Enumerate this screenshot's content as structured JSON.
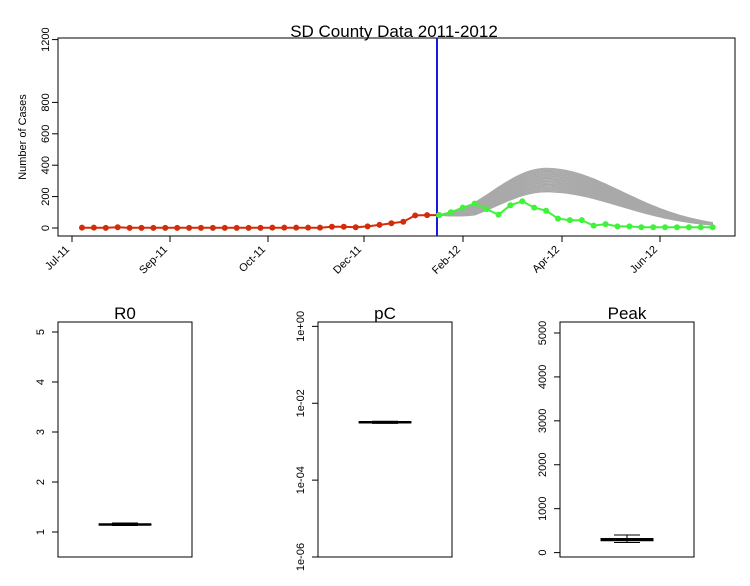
{
  "chart_data": [
    {
      "type": "line",
      "title": "SD County Data 2011-2012",
      "xlabel": "",
      "ylabel": "Number of Cases",
      "x_tick_labels": [
        "Jul-11",
        "Sep-11",
        "Oct-11",
        "Dec-11",
        "Feb-12",
        "Apr-12",
        "Jun-12"
      ],
      "y_ticks": [
        0,
        200,
        400,
        600,
        800,
        1200
      ],
      "ylim": [
        0,
        1250
      ],
      "observed_fit_weeks": [
        1,
        2,
        3,
        4,
        5,
        6,
        7,
        8,
        9,
        10,
        11,
        12,
        13,
        14,
        15,
        16,
        17,
        18,
        19,
        20,
        21,
        22,
        23,
        24,
        25,
        26,
        27,
        28,
        29,
        30,
        31
      ],
      "observed_fit_cases": [
        2,
        2,
        1,
        5,
        1,
        1,
        1,
        1,
        1,
        1,
        1,
        1,
        1,
        1,
        1,
        1,
        2,
        2,
        2,
        2,
        2,
        8,
        8,
        5,
        10,
        20,
        30,
        40,
        80,
        82,
        82
      ],
      "observed_forecast_weeks": [
        31,
        32,
        33,
        34,
        35,
        36,
        37,
        38,
        39,
        40,
        41,
        42,
        43,
        44,
        45,
        46,
        47,
        48,
        49,
        50,
        51,
        52,
        53,
        54
      ],
      "observed_forecast_cases": [
        82,
        100,
        130,
        155,
        120,
        85,
        145,
        170,
        130,
        110,
        60,
        50,
        50,
        15,
        25,
        10,
        10,
        5,
        5,
        5,
        5,
        5,
        5,
        5
      ],
      "forecast_ensemble_upper_peak": 380,
      "forecast_ensemble_lower_peak": 230,
      "forecast_peak_week": 40,
      "forecast_start_week": 31,
      "colors": {
        "fit": "#d42b08",
        "forecast": "#3ff23a",
        "ensemble": "#a9a9a9",
        "split_line": "#1a1adf"
      }
    },
    {
      "type": "box",
      "title": "R0",
      "ylim": [
        0.5,
        5.2
      ],
      "y_ticks": [
        1,
        2,
        3,
        4,
        5
      ],
      "median": 1.15,
      "q1": 1.14,
      "q3": 1.16,
      "whisker_low": 1.13,
      "whisker_high": 1.18
    },
    {
      "type": "box",
      "title": "pC",
      "log_scale": true,
      "ylim": [
        1e-06,
        1.3
      ],
      "y_ticks": [
        "1e-06",
        "1e-04",
        "1e-02",
        "1e+00"
      ],
      "median": 0.0032,
      "q1": 0.0031,
      "q3": 0.0033,
      "whisker_low": 0.003,
      "whisker_high": 0.0034
    },
    {
      "type": "box",
      "title": "Peak",
      "ylim": [
        -100,
        5250
      ],
      "y_ticks": [
        0,
        1000,
        2000,
        3000,
        4000,
        5000
      ],
      "median": 300,
      "q1": 270,
      "q3": 320,
      "whisker_low": 230,
      "whisker_high": 400
    }
  ]
}
